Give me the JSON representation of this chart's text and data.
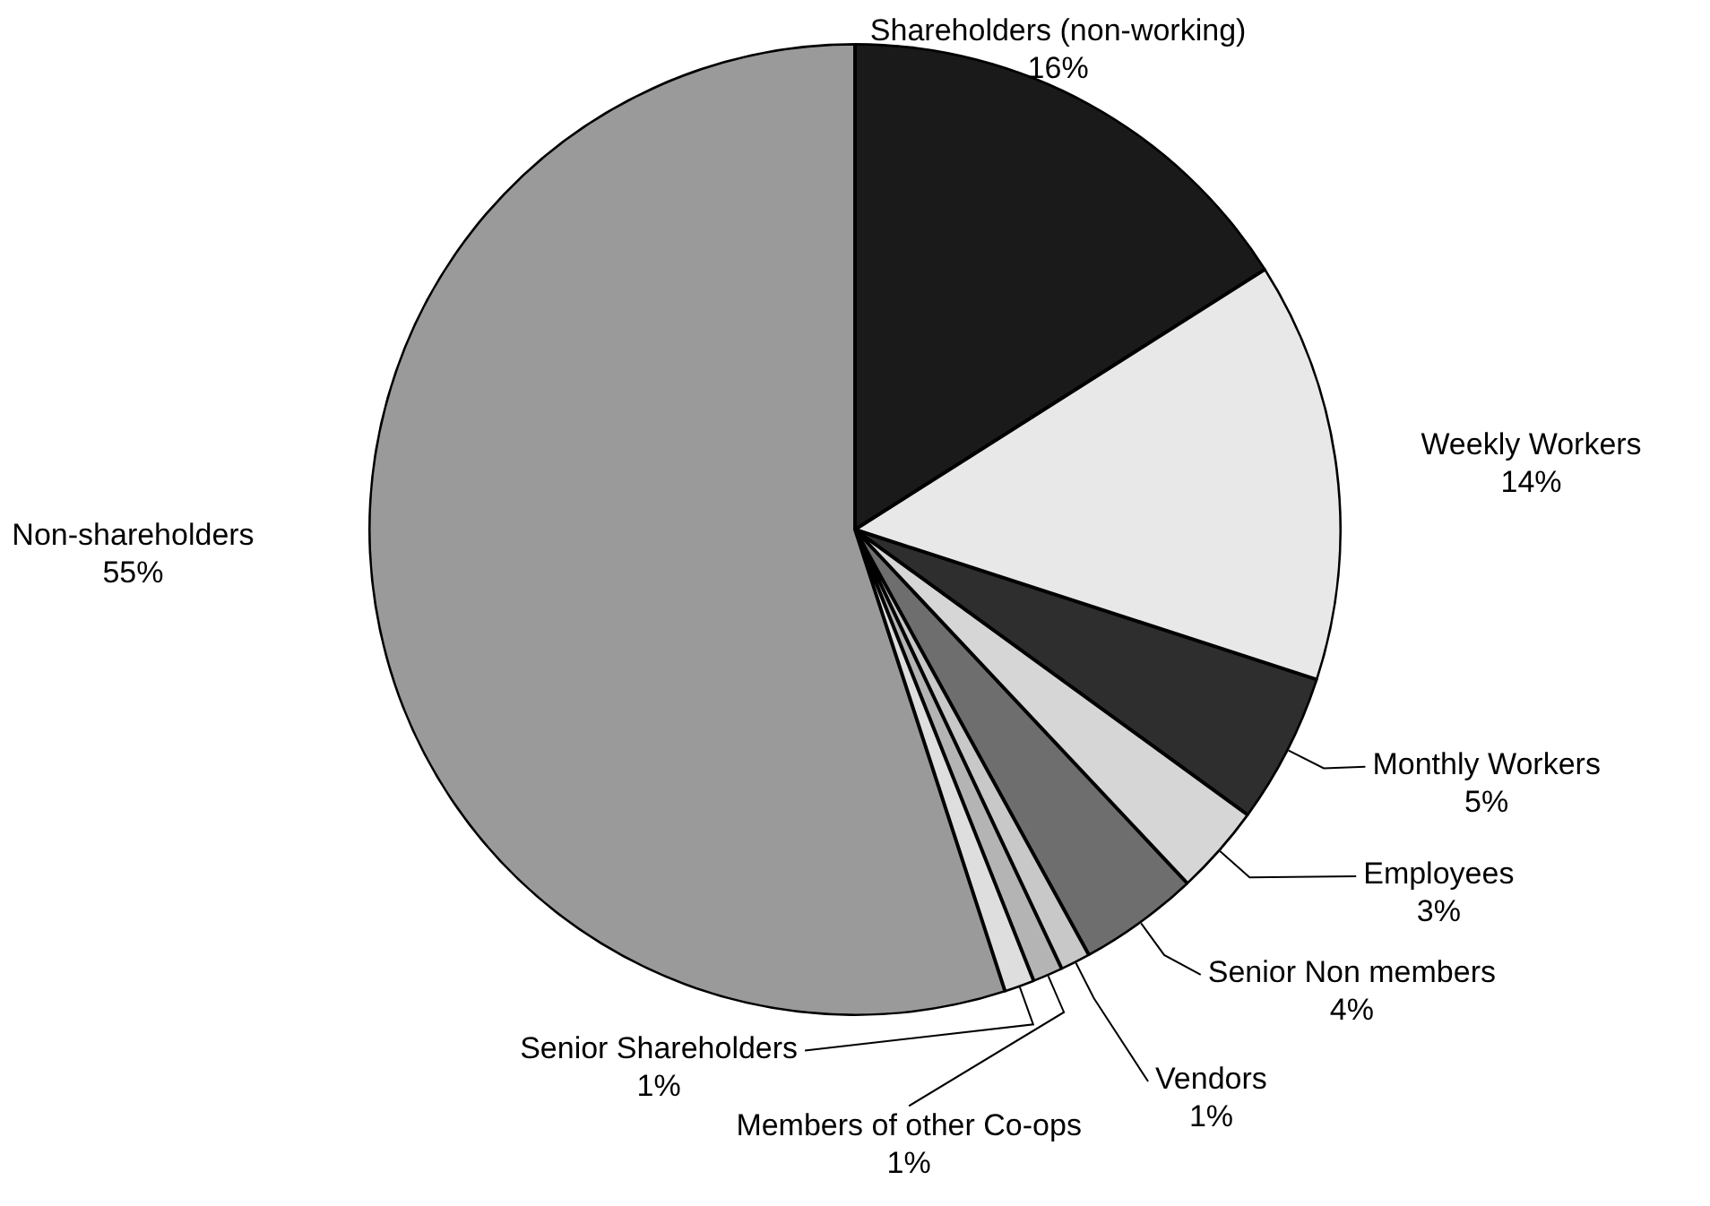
{
  "chart_data": {
    "type": "pie",
    "categories": [
      "Shareholders (non-working)",
      "Weekly Workers",
      "Monthly Workers",
      "Employees",
      "Senior Non members",
      "Vendors",
      "Members of other Co-ops",
      "Senior Shareholders",
      "Non-shareholders"
    ],
    "values": [
      16,
      14,
      5,
      3,
      4,
      1,
      1,
      1,
      55
    ],
    "value_labels": [
      "16%",
      "14%",
      "5%",
      "3%",
      "4%",
      "1%",
      "1%",
      "1%",
      "55%"
    ],
    "colors": [
      "#1a1a1a",
      "#e8e8e8",
      "#2e2e2e",
      "#d6d6d6",
      "#6e6e6e",
      "#c8c8c8",
      "#b4b4b4",
      "#dedede",
      "#9a9a9a"
    ],
    "legend": false
  }
}
